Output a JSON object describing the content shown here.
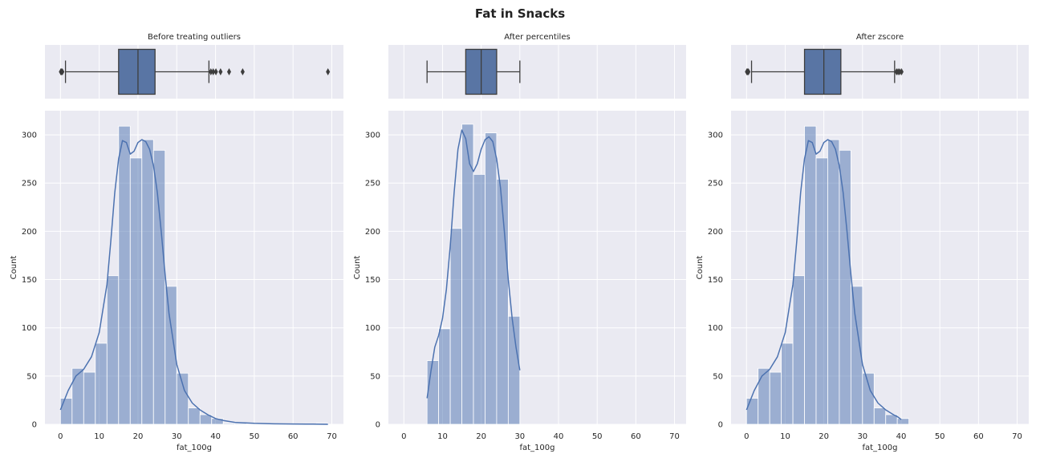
{
  "suptitle": "Fat in Snacks",
  "colors": {
    "panel_bg": "#EAEAF2",
    "grid": "#FFFFFF",
    "bar_fill": "#4C72B0",
    "bar_fill_opacity": 0.5,
    "kde": "#4C72B0",
    "box_fill": "#5975A4",
    "box_edge": "#3d3d3d",
    "text": "#262626"
  },
  "chart_data": [
    {
      "type": "box",
      "title": "Before treating outliers",
      "xlim": [
        -4,
        73
      ],
      "xticks": [
        0,
        10,
        20,
        30,
        40,
        50,
        60,
        70
      ],
      "grid": true,
      "box": {
        "whisker_low": 1.3,
        "q1": 15.0,
        "median": 20.0,
        "q3": 24.4,
        "whisker_high": 38.3
      },
      "outliers": [
        0.1,
        0.3,
        0.5,
        38.8,
        39.4,
        40.1,
        41.3,
        43.5,
        47.0,
        69.0
      ]
    },
    {
      "type": "box",
      "title": "After percentiles",
      "xlim": [
        -4,
        73
      ],
      "xticks": [
        0,
        10,
        20,
        30,
        40,
        50,
        60,
        70
      ],
      "grid": true,
      "box": {
        "whisker_low": 6.0,
        "q1": 16.0,
        "median": 20.0,
        "q3": 24.0,
        "whisker_high": 30.0
      },
      "outliers": []
    },
    {
      "type": "box",
      "title": "After zscore",
      "xlim": [
        -4,
        73
      ],
      "xticks": [
        0,
        10,
        20,
        30,
        40,
        50,
        60,
        70
      ],
      "grid": true,
      "box": {
        "whisker_low": 1.3,
        "q1": 15.0,
        "median": 20.0,
        "q3": 24.4,
        "whisker_high": 38.3
      },
      "outliers": [
        0.1,
        0.3,
        0.5,
        38.8,
        39.2,
        39.6,
        40.1
      ]
    },
    {
      "type": "bar",
      "subtype": "histogram_with_kde",
      "xlabel": "fat_100g",
      "ylabel": "Count",
      "xlim": [
        -4,
        73
      ],
      "ylim": [
        0,
        325
      ],
      "xticks": [
        0,
        10,
        20,
        30,
        40,
        50,
        60,
        70
      ],
      "yticks": [
        0,
        50,
        100,
        150,
        200,
        250,
        300
      ],
      "grid": true,
      "bin_edges": [
        0.0,
        3.0,
        6.0,
        9.0,
        12.0,
        15.0,
        18.0,
        21.0,
        24.0,
        27.0,
        30.0,
        33.0,
        36.0,
        39.0,
        42.0,
        45.0,
        48.0,
        51.0,
        54.0,
        57.0,
        60.0,
        63.0,
        66.0,
        69.0
      ],
      "values": [
        27,
        58,
        54,
        84,
        154,
        309,
        276,
        295,
        284,
        143,
        53,
        17,
        10,
        6,
        1,
        1,
        0,
        0,
        0,
        0,
        0,
        0,
        1
      ],
      "kde": {
        "x": [
          0,
          2,
          4,
          6,
          8,
          10,
          12,
          13,
          14,
          15,
          16,
          17,
          18,
          19,
          20,
          21,
          22,
          23,
          24,
          25,
          26,
          27,
          28,
          30,
          32,
          34,
          36,
          38,
          40,
          42,
          45,
          50,
          55,
          60,
          65,
          69
        ],
        "y": [
          15,
          35,
          50,
          57,
          70,
          95,
          145,
          190,
          240,
          275,
          294,
          292,
          280,
          283,
          292,
          295,
          293,
          285,
          268,
          240,
          200,
          155,
          115,
          62,
          35,
          22,
          15,
          10,
          6,
          4,
          2,
          1,
          0.5,
          0.3,
          0.2,
          0
        ]
      }
    },
    {
      "type": "bar",
      "subtype": "histogram_with_kde",
      "xlabel": "fat_100g",
      "ylabel": "Count",
      "xlim": [
        -4,
        73
      ],
      "ylim": [
        0,
        325
      ],
      "xticks": [
        0,
        10,
        20,
        30,
        40,
        50,
        60,
        70
      ],
      "yticks": [
        0,
        50,
        100,
        150,
        200,
        250,
        300
      ],
      "grid": true,
      "bin_edges": [
        6.0,
        9.0,
        12.0,
        15.0,
        18.0,
        21.0,
        24.0,
        27.0,
        30.0
      ],
      "values": [
        66,
        99,
        203,
        311,
        259,
        302,
        254,
        112
      ],
      "kde": {
        "x": [
          6,
          7,
          8,
          9,
          10,
          11,
          12,
          13,
          14,
          15,
          16,
          17,
          18,
          19,
          20,
          21,
          22,
          23,
          24,
          25,
          26,
          27,
          28,
          29,
          30
        ],
        "y": [
          27,
          55,
          80,
          92,
          110,
          140,
          185,
          240,
          285,
          305,
          296,
          270,
          262,
          270,
          285,
          295,
          298,
          293,
          275,
          245,
          200,
          150,
          110,
          80,
          56
        ]
      }
    },
    {
      "type": "bar",
      "subtype": "histogram_with_kde",
      "xlabel": "fat_100g",
      "ylabel": "Count",
      "xlim": [
        -4,
        73
      ],
      "ylim": [
        0,
        325
      ],
      "xticks": [
        0,
        10,
        20,
        30,
        40,
        50,
        60,
        70
      ],
      "yticks": [
        0,
        50,
        100,
        150,
        200,
        250,
        300
      ],
      "grid": true,
      "bin_edges": [
        0.0,
        3.0,
        6.0,
        9.0,
        12.0,
        15.0,
        18.0,
        21.0,
        24.0,
        27.0,
        30.0,
        33.0,
        36.0,
        39.0,
        42.0
      ],
      "values": [
        27,
        58,
        54,
        84,
        154,
        309,
        276,
        295,
        284,
        143,
        53,
        17,
        10,
        6
      ],
      "kde": {
        "x": [
          0,
          2,
          4,
          6,
          8,
          10,
          12,
          13,
          14,
          15,
          16,
          17,
          18,
          19,
          20,
          21,
          22,
          23,
          24,
          25,
          26,
          27,
          28,
          30,
          32,
          34,
          36,
          38,
          39,
          40
        ],
        "y": [
          15,
          35,
          50,
          57,
          70,
          95,
          145,
          190,
          240,
          275,
          294,
          292,
          280,
          283,
          292,
          295,
          293,
          285,
          268,
          240,
          200,
          155,
          115,
          62,
          35,
          22,
          15,
          10,
          8,
          5
        ]
      }
    }
  ]
}
